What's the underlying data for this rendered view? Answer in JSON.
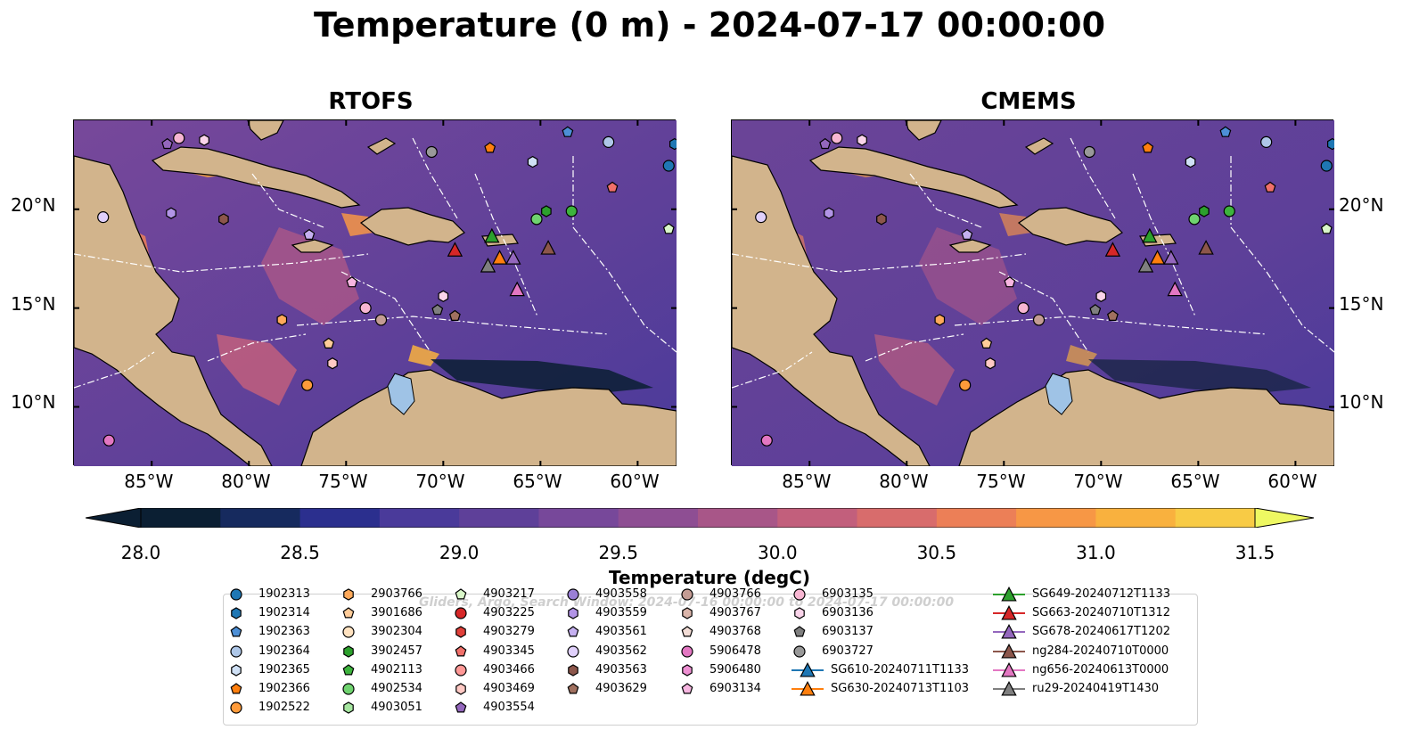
{
  "title": "Temperature (0 m) - 2024-07-17 00:00:00",
  "panels": [
    {
      "title": "RTOFS"
    },
    {
      "title": "CMEMS"
    }
  ],
  "x_ticks": [
    "85°W",
    "80°W",
    "75°W",
    "70°W",
    "65°W",
    "60°W"
  ],
  "y_ticks": [
    "20°N",
    "15°N",
    "10°N"
  ],
  "colorbar": {
    "label": "Temperature (degC)",
    "ticks": [
      "28.0",
      "28.5",
      "29.0",
      "29.5",
      "30.0",
      "30.5",
      "31.0",
      "31.5"
    ],
    "range": [
      28.0,
      31.5
    ],
    "colors": [
      "#0b1f33",
      "#162a5e",
      "#2b2f8e",
      "#4a3a9a",
      "#5e4099",
      "#77489a",
      "#8e4e93",
      "#a85688",
      "#c25f7c",
      "#d86c6c",
      "#ec7f57",
      "#f79745",
      "#f9b13e",
      "#f8cb45",
      "#eef862"
    ]
  },
  "legend": {
    "watermark": "Gliders, Argo, Search Window: 2024-07-16 00:00:00 to 2024-07-17 00:00:00",
    "columns": [
      [
        {
          "label": "1902313",
          "marker": "circle",
          "color": "#1f77b4"
        },
        {
          "label": "1902314",
          "marker": "hexagon",
          "color": "#1f77b4"
        },
        {
          "label": "1902363",
          "marker": "pentagon",
          "color": "#4d8fd6"
        },
        {
          "label": "1902364",
          "marker": "circle",
          "color": "#aec7e8"
        },
        {
          "label": "1902365",
          "marker": "hexagon",
          "color": "#cfe0f5"
        },
        {
          "label": "1902366",
          "marker": "pentagon",
          "color": "#ff7f0e"
        },
        {
          "label": "1902522",
          "marker": "circle",
          "color": "#ff9b3a"
        }
      ],
      [
        {
          "label": "2903766",
          "marker": "hexagon",
          "color": "#ffa95a"
        },
        {
          "label": "3901686",
          "marker": "pentagon",
          "color": "#ffcc99"
        },
        {
          "label": "3902304",
          "marker": "circle",
          "color": "#ffe2c0"
        },
        {
          "label": "3902457",
          "marker": "hexagon",
          "color": "#2ca02c"
        },
        {
          "label": "4902113",
          "marker": "pentagon",
          "color": "#3db33d"
        },
        {
          "label": "4902534",
          "marker": "circle",
          "color": "#6fd36f"
        },
        {
          "label": "4903051",
          "marker": "hexagon",
          "color": "#a6e6a0"
        }
      ],
      [
        {
          "label": "4903217",
          "marker": "pentagon",
          "color": "#d9f7c9"
        },
        {
          "label": "4903225",
          "marker": "circle",
          "color": "#d62728"
        },
        {
          "label": "4903279",
          "marker": "hexagon",
          "color": "#e0403a"
        },
        {
          "label": "4903345",
          "marker": "pentagon",
          "color": "#f0706a"
        },
        {
          "label": "4903466",
          "marker": "circle",
          "color": "#ff9896"
        },
        {
          "label": "4903469",
          "marker": "hexagon",
          "color": "#ffc9c4"
        },
        {
          "label": "4903554",
          "marker": "pentagon",
          "color": "#9467bd"
        }
      ],
      [
        {
          "label": "4903558",
          "marker": "circle",
          "color": "#9a7fd6"
        },
        {
          "label": "4903559",
          "marker": "hexagon",
          "color": "#b294e6"
        },
        {
          "label": "4903561",
          "marker": "pentagon",
          "color": "#c5b0f0"
        },
        {
          "label": "4903562",
          "marker": "circle",
          "color": "#e0d0fb"
        },
        {
          "label": "4903563",
          "marker": "hexagon",
          "color": "#8c564b"
        },
        {
          "label": "4903629",
          "marker": "pentagon",
          "color": "#a0705f"
        }
      ],
      [
        {
          "label": "4903766",
          "marker": "circle",
          "color": "#c49c94"
        },
        {
          "label": "4903767",
          "marker": "hexagon",
          "color": "#dbb5aa"
        },
        {
          "label": "4903768",
          "marker": "pentagon",
          "color": "#f2dcd5"
        },
        {
          "label": "5906478",
          "marker": "circle",
          "color": "#e377c2"
        },
        {
          "label": "5906480",
          "marker": "hexagon",
          "color": "#ee8fd2"
        },
        {
          "label": "6903134",
          "marker": "pentagon",
          "color": "#f7b6e1"
        }
      ],
      [
        {
          "label": "6903135",
          "marker": "circle",
          "color": "#f7b6d2"
        },
        {
          "label": "6903136",
          "marker": "hexagon",
          "color": "#fad4ea"
        },
        {
          "label": "6903137",
          "marker": "pentagon",
          "color": "#7f7f7f"
        },
        {
          "label": "6903727",
          "marker": "circle",
          "color": "#999999"
        },
        {
          "label": "SG610-20240711T1133",
          "marker": "glider",
          "color": "#1f77b4"
        },
        {
          "label": "SG630-20240713T1103",
          "marker": "glider",
          "color": "#ff7f0e"
        }
      ],
      [
        {
          "label": "SG649-20240712T1133",
          "marker": "glider",
          "color": "#2ca02c"
        },
        {
          "label": "SG663-20240710T1312",
          "marker": "glider",
          "color": "#d62728"
        },
        {
          "label": "SG678-20240617T1202",
          "marker": "glider",
          "color": "#9467bd"
        },
        {
          "label": "ng284-20240710T0000",
          "marker": "glider",
          "color": "#8c564b"
        },
        {
          "label": "ng656-20240613T0000",
          "marker": "glider",
          "color": "#e377c2"
        },
        {
          "label": "ru29-20240419T1430",
          "marker": "glider",
          "color": "#7f7f7f"
        }
      ]
    ]
  }
}
